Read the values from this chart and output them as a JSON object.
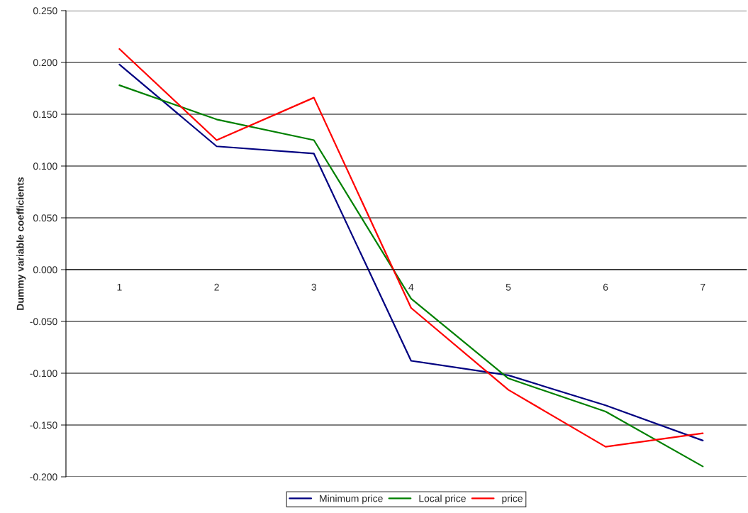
{
  "chart_data": {
    "type": "line",
    "ylabel": "Dummy variable coefficients",
    "categories": [
      "1",
      "2",
      "3",
      "4",
      "5",
      "6",
      "7"
    ],
    "series": [
      {
        "name": "Minimum price",
        "color": "#000080",
        "values": [
          0.198,
          0.119,
          0.112,
          -0.088,
          -0.102,
          -0.131,
          -0.165
        ]
      },
      {
        "name": "Local price",
        "color": "#008000",
        "values": [
          0.178,
          0.145,
          0.125,
          -0.028,
          -0.105,
          -0.137,
          -0.19
        ]
      },
      {
        "name": "price",
        "color": "#ff0000",
        "values": [
          0.213,
          0.125,
          0.166,
          -0.037,
          -0.116,
          -0.171,
          -0.158
        ]
      }
    ],
    "ylim": [
      -0.2,
      0.25
    ],
    "yticks": [
      {
        "value": -0.2,
        "label": "-0.200"
      },
      {
        "value": -0.15,
        "label": "-0.150"
      },
      {
        "value": -0.1,
        "label": "-0.100"
      },
      {
        "value": -0.05,
        "label": "-0.050"
      },
      {
        "value": 0,
        "label": "0.000"
      },
      {
        "value": 0.05,
        "label": "0.050"
      },
      {
        "value": 0.1,
        "label": "0.100"
      },
      {
        "value": 0.15,
        "label": "0.150"
      },
      {
        "value": 0.2,
        "label": "0.200"
      },
      {
        "value": 0.25,
        "label": "0.250"
      }
    ],
    "grid": "y",
    "legend": "bottom",
    "marker": "none",
    "line_style": "solid"
  }
}
